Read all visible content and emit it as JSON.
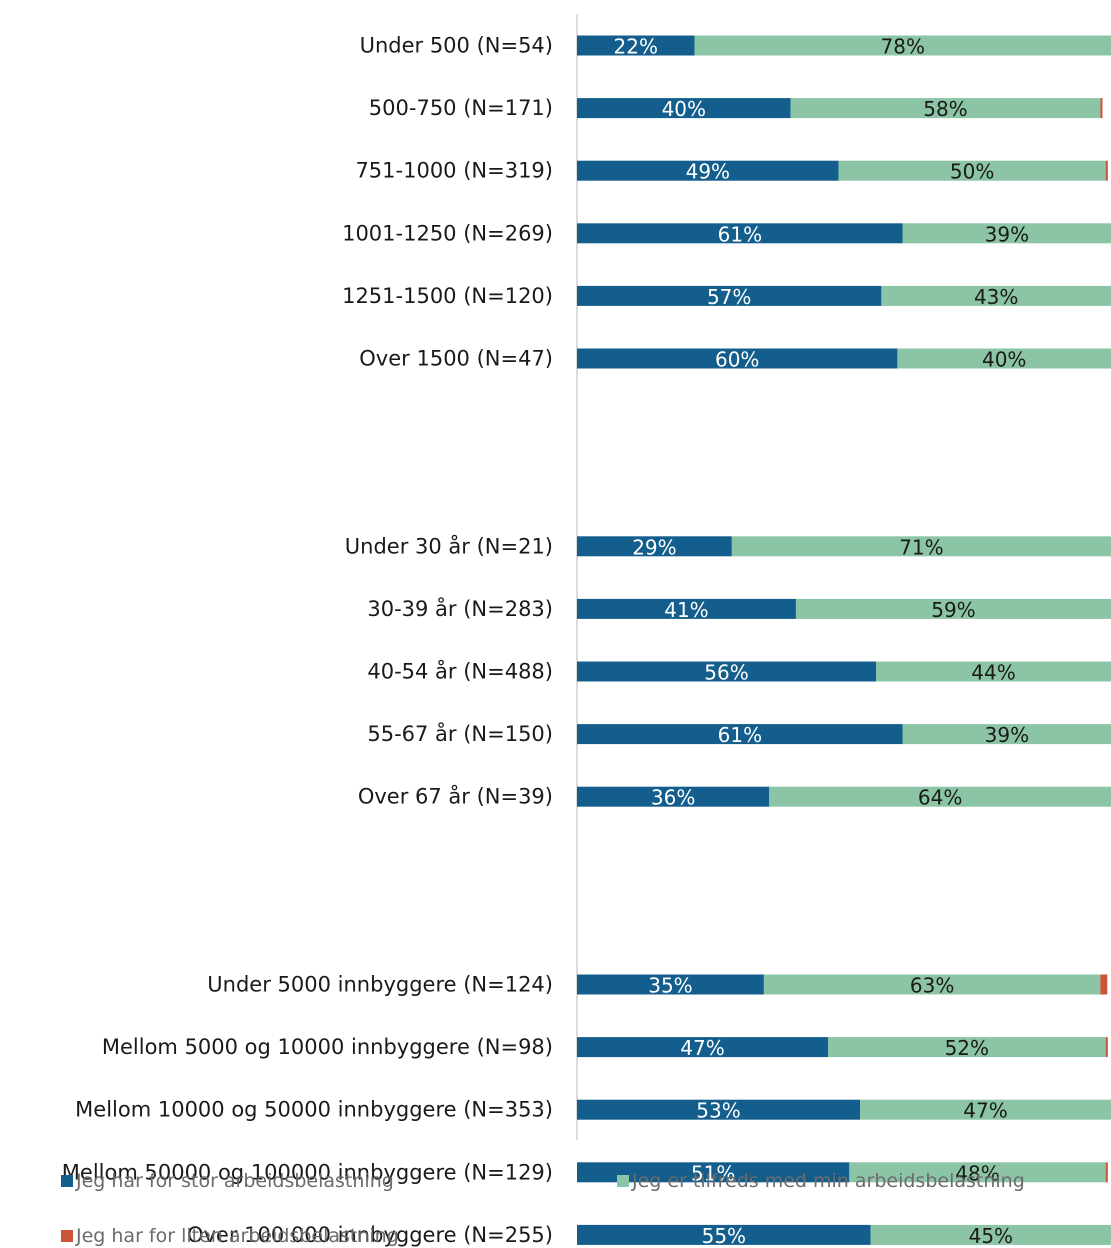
{
  "chart_data": {
    "type": "bar",
    "orientation": "horizontal",
    "stacked": true,
    "categories": [
      "Under 500 (N=54)",
      "500-750 (N=171)",
      "751-1000 (N=319)",
      "1001-1250 (N=269)",
      "1251-1500 (N=120)",
      "Over 1500 (N=47)",
      "Under 30 år (N=21)",
      "30-39 år (N=283)",
      "40-54 år (N=488)",
      "55-67 år (N=150)",
      "Over 67 år (N=39)",
      "Under 5000 innbyggere (N=124)",
      "Mellom 5000 og 10000 innbyggere (N=98)",
      "Mellom 10000 og 50000 innbyggere (N=353)",
      "Mellom 50000 og 100000 innbyggere (N=129)",
      "Over 100 000 innbyggere (N=255)"
    ],
    "groups": [
      [
        0,
        1,
        2,
        3,
        4,
        5
      ],
      [
        6,
        7,
        8,
        9,
        10
      ],
      [
        11,
        12,
        13,
        14,
        15
      ]
    ],
    "series": [
      {
        "name": "Jeg har for stor arbeidsbelastning",
        "color": "#135e8c",
        "label_color": "#ffffff",
        "values": [
          22,
          40,
          49,
          61,
          57,
          60,
          29,
          41,
          56,
          61,
          36,
          35,
          47,
          53,
          51,
          55
        ],
        "labels": [
          "22%",
          "40%",
          "49%",
          "61%",
          "57%",
          "60%",
          "29%",
          "41%",
          "56%",
          "61%",
          "36%",
          "35%",
          "47%",
          "53%",
          "51%",
          "55%"
        ]
      },
      {
        "name": "Jeg er tilfreds med min arbeidsbelastning",
        "color": "#8bc5a5",
        "label_color": "#1a1a1a",
        "values": [
          78,
          58,
          50,
          39,
          43,
          40,
          71,
          59,
          44,
          39,
          64,
          63,
          52,
          47,
          48,
          45
        ],
        "labels": [
          "78%",
          "58%",
          "50%",
          "39%",
          "43%",
          "40%",
          "71%",
          "59%",
          "44%",
          "39%",
          "64%",
          "63%",
          "52%",
          "47%",
          "48%",
          "45%"
        ]
      },
      {
        "name": "Jeg har for liten arbeidsbelastning",
        "color": "#c8553a",
        "label_color": "#1a1a1a",
        "values": [
          0,
          0.4,
          0.4,
          0,
          0,
          0,
          0,
          0.4,
          0,
          0,
          0,
          1.3,
          0.4,
          0,
          0.4,
          0
        ],
        "labels": [
          "",
          "",
          "",
          "",
          "",
          "",
          "",
          "",
          "",
          "",
          "",
          "",
          "",
          "",
          "",
          ""
        ]
      }
    ],
    "xlim": [
      0,
      100
    ],
    "grid": false,
    "legend_position": "bottom"
  }
}
